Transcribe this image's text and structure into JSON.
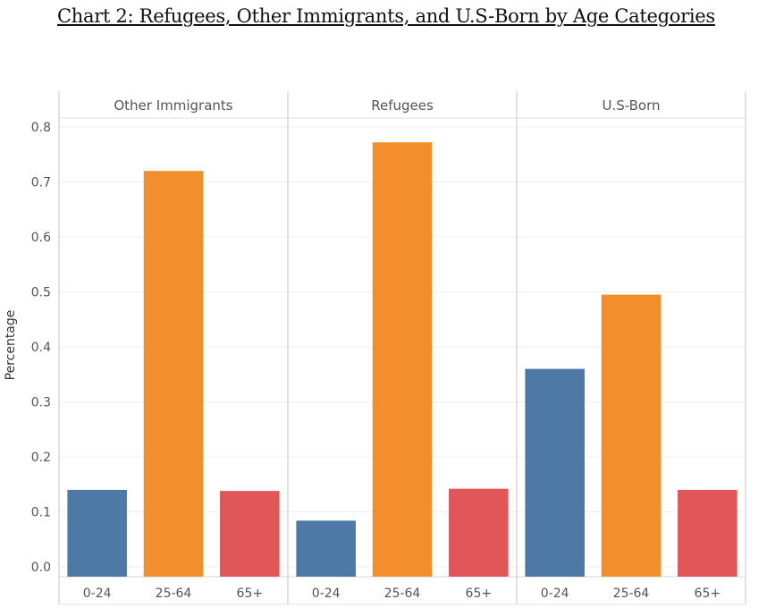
{
  "page": {
    "title": "Chart 2: Refugees, Other Immigrants, and U.S-Born by Age Categories"
  },
  "chart_data": {
    "type": "bar",
    "title": "Chart 2: Refugees, Other Immigrants, and U.S-Born by Age Categories",
    "ylabel": "Percentage",
    "xlabel": "",
    "ylim": [
      0,
      0.8
    ],
    "yticks": [
      "0.0",
      "0.1",
      "0.2",
      "0.3",
      "0.4",
      "0.5",
      "0.6",
      "0.7",
      "0.8"
    ],
    "categories": [
      "0-24",
      "25-64",
      "65+"
    ],
    "category_colors": [
      "#4e79a7",
      "#f28e2b",
      "#e15759"
    ],
    "grid": true,
    "panels": [
      {
        "name": "Other Immigrants",
        "values": [
          0.14,
          0.72,
          0.138
        ]
      },
      {
        "name": "Refugees",
        "values": [
          0.084,
          0.772,
          0.142
        ]
      },
      {
        "name": "U.S-Born",
        "values": [
          0.36,
          0.495,
          0.14
        ]
      }
    ]
  }
}
